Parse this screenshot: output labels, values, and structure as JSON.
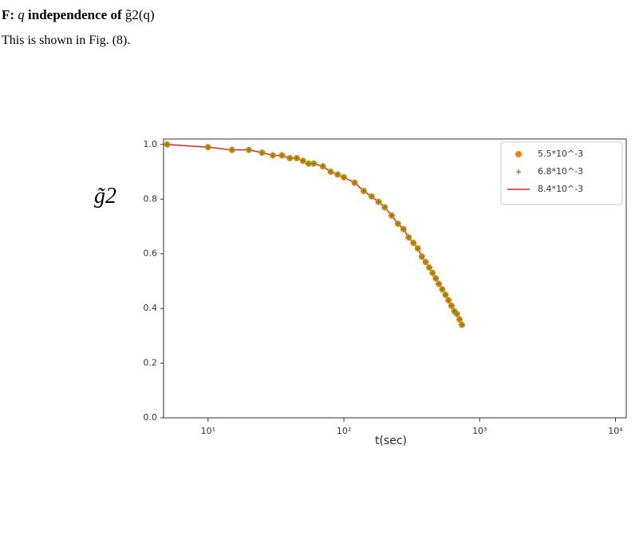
{
  "heading": [
    "F:",
    "q",
    "independence of",
    "g̃2(q)"
  ],
  "body_text": "This is shown in Fig. (8).",
  "chart_data": {
    "type": "scatter",
    "y_label": "g̃2",
    "x_label": "t(sec)",
    "xscale": "log",
    "xlim": [
      4.7,
      12000
    ],
    "xticks": [
      {
        "value": 10,
        "label": "10¹"
      },
      {
        "value": 100,
        "label": "10²"
      },
      {
        "value": 1000,
        "label": "10³"
      },
      {
        "value": 10000,
        "label": "10⁴"
      }
    ],
    "ylim": [
      0,
      1.02
    ],
    "yticks": [
      {
        "value": 0,
        "label": "0.0"
      },
      0.2,
      0.4,
      0.6,
      0.8,
      {
        "value": 1,
        "label": "1.0"
      }
    ],
    "legend": "upper right",
    "x": [
      5,
      10,
      15,
      20,
      25,
      30,
      35,
      40,
      45,
      50,
      55,
      60,
      70,
      80,
      90,
      100,
      120,
      140,
      160,
      180,
      200,
      225,
      250,
      275,
      300,
      325,
      350,
      375,
      400,
      425,
      450,
      475,
      500,
      530,
      560,
      590,
      620,
      650,
      680,
      710,
      740
    ],
    "series": [
      {
        "name": "5.5*10^-3",
        "color": "#ff7f0e",
        "marker": "circle",
        "values": [
          1.0,
          0.99,
          0.98,
          0.98,
          0.97,
          0.96,
          0.96,
          0.95,
          0.95,
          0.94,
          0.93,
          0.93,
          0.92,
          0.9,
          0.89,
          0.88,
          0.86,
          0.83,
          0.81,
          0.79,
          0.77,
          0.74,
          0.71,
          0.69,
          0.66,
          0.64,
          0.62,
          0.59,
          0.57,
          0.55,
          0.53,
          0.51,
          0.49,
          0.47,
          0.45,
          0.43,
          0.41,
          0.39,
          0.38,
          0.36,
          0.34
        ]
      },
      {
        "name": "6.8*10^-3",
        "color": "#2ca02c",
        "marker": "plus",
        "values": [
          1.0,
          0.99,
          0.98,
          0.98,
          0.97,
          0.96,
          0.96,
          0.95,
          0.95,
          0.94,
          0.93,
          0.93,
          0.92,
          0.9,
          0.89,
          0.88,
          0.86,
          0.83,
          0.81,
          0.79,
          0.77,
          0.74,
          0.71,
          0.69,
          0.66,
          0.64,
          0.62,
          0.59,
          0.57,
          0.55,
          0.53,
          0.51,
          0.49,
          0.47,
          0.45,
          0.43,
          0.41,
          0.39,
          0.38,
          0.36,
          0.34
        ]
      },
      {
        "name": "8.4*10^-3",
        "color": "#d62728",
        "marker": "line",
        "values": [
          1.0,
          0.99,
          0.98,
          0.98,
          0.97,
          0.96,
          0.96,
          0.95,
          0.95,
          0.94,
          0.93,
          0.93,
          0.92,
          0.9,
          0.89,
          0.88,
          0.86,
          0.83,
          0.81,
          0.79,
          0.77,
          0.74,
          0.71,
          0.69,
          0.66,
          0.64,
          0.62,
          0.59,
          0.57,
          0.55,
          0.53,
          0.51,
          0.49,
          0.47,
          0.45,
          0.43,
          0.41,
          0.39,
          0.38,
          0.36,
          0.34
        ]
      }
    ]
  }
}
